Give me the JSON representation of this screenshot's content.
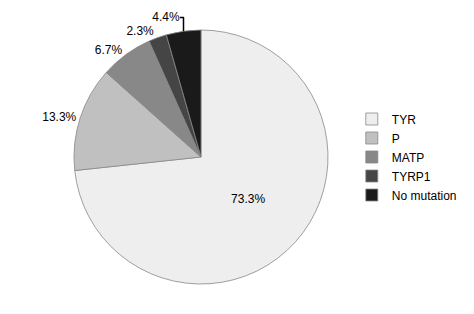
{
  "chart_data": {
    "type": "pie",
    "categories": [
      "TYR",
      "P",
      "MATP",
      "TYRP1",
      "No mutation"
    ],
    "values": [
      73.3,
      13.3,
      6.7,
      2.3,
      4.4
    ],
    "value_labels": [
      "73.3%",
      "13.3%",
      "6.7%",
      "2.3%",
      "4.4%"
    ],
    "colors": [
      "#eeeeee",
      "#c0c0c0",
      "#888888",
      "#454545",
      "#1a1a1a"
    ],
    "data_labels": true,
    "legend": "right"
  }
}
